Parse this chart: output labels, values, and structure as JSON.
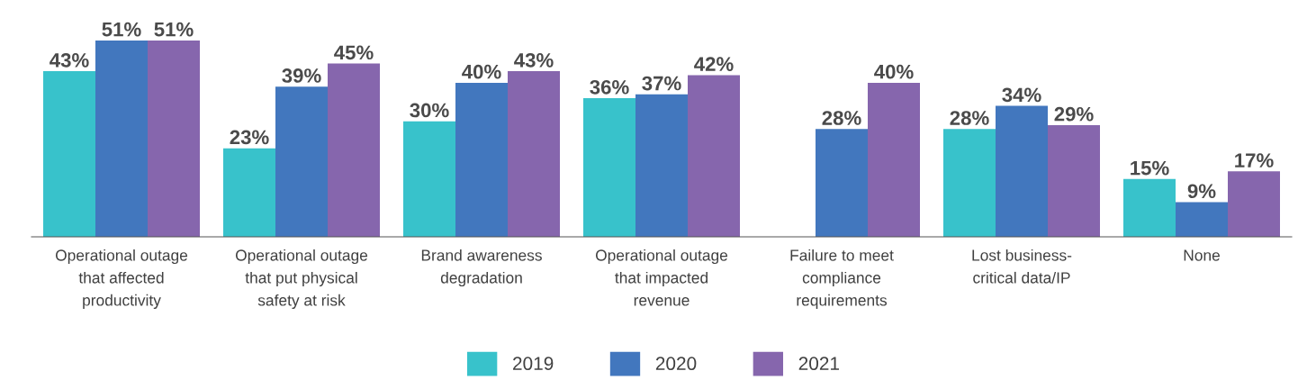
{
  "chart_data": {
    "type": "bar",
    "categories": [
      "Operational outage\nthat affected\nproductivity",
      "Operational outage\nthat put physical\nsafety at risk",
      "Brand awareness\ndegradation",
      "Operational outage\nthat impacted\nrevenue",
      "Failure to meet\ncompliance\nrequirements",
      "Lost business-\ncritical data/IP",
      "None"
    ],
    "series": [
      {
        "name": "2019",
        "color": "#38c2cb",
        "values": [
          43,
          23,
          30,
          36,
          null,
          28,
          15
        ],
        "value_labels": [
          "43%",
          "23%",
          "30%",
          "36%",
          null,
          "28%",
          "15%"
        ]
      },
      {
        "name": "2020",
        "color": "#4277be",
        "values": [
          51,
          39,
          40,
          37,
          28,
          34,
          9
        ],
        "value_labels": [
          "51%",
          "39%",
          "40%",
          "37%",
          "28%",
          "34%",
          "9%"
        ]
      },
      {
        "name": "2021",
        "color": "#8666ad",
        "values": [
          51,
          45,
          43,
          42,
          40,
          29,
          17
        ],
        "value_labels": [
          "51%",
          "45%",
          "43%",
          "42%",
          "40%",
          "29%",
          "17%"
        ]
      }
    ],
    "legend": "bottom",
    "grid": false,
    "tick_labels": "x"
  }
}
